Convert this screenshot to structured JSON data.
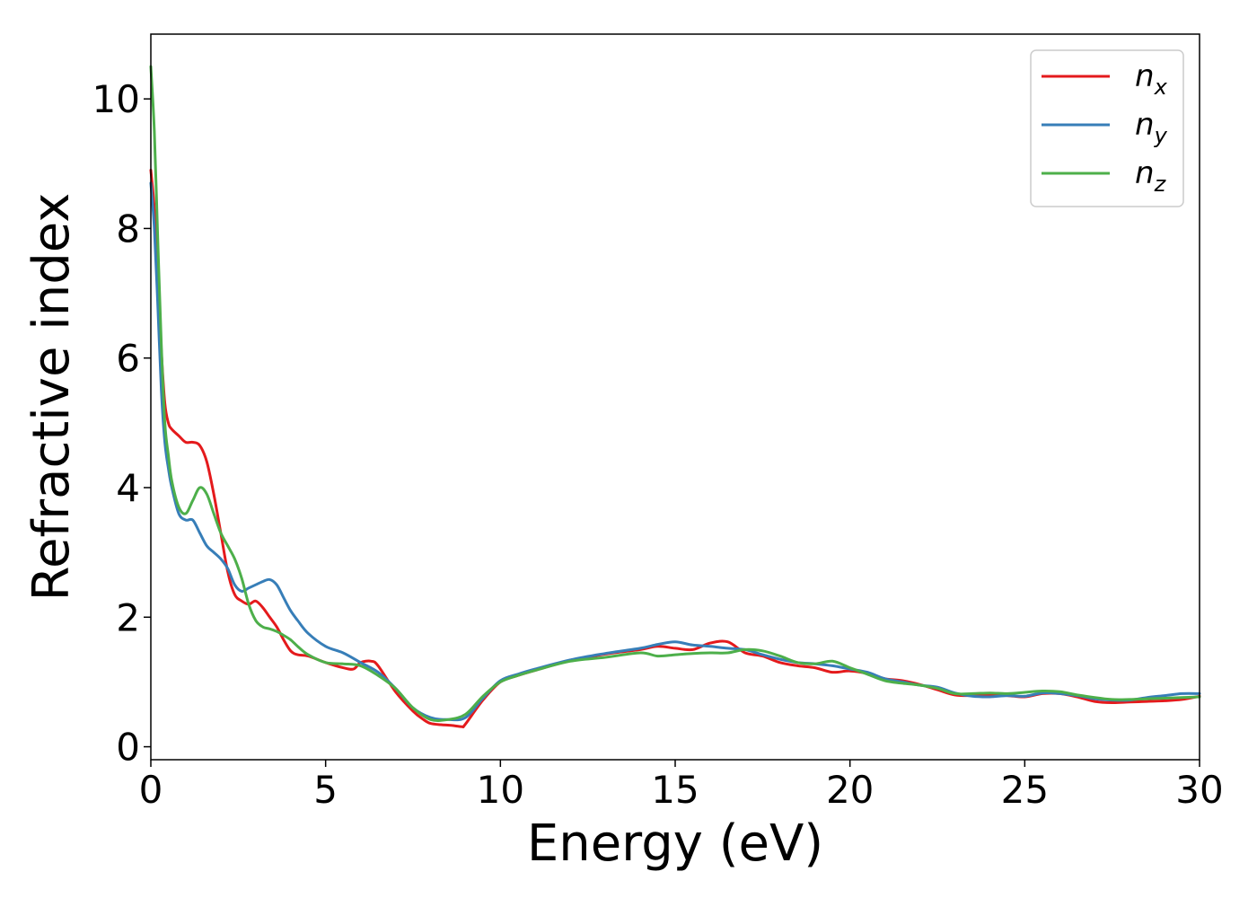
{
  "chart_data": {
    "type": "line",
    "xlabel": "Energy (eV)",
    "ylabel": "Refractive index",
    "xlim": [
      0,
      30
    ],
    "ylim": [
      -0.2,
      11.0
    ],
    "xticks": [
      0,
      5,
      10,
      15,
      20,
      25,
      30
    ],
    "yticks": [
      0,
      2,
      4,
      6,
      8,
      10
    ],
    "grid": false,
    "legend_position": "top-right",
    "series": [
      {
        "name": "n",
        "subscript": "x",
        "color": "#e41a1c",
        "x": [
          0,
          0.1,
          0.2,
          0.3,
          0.4,
          0.5,
          0.6,
          0.8,
          1.0,
          1.2,
          1.4,
          1.6,
          1.8,
          2.0,
          2.2,
          2.4,
          2.6,
          2.8,
          3.0,
          3.2,
          3.4,
          3.6,
          3.8,
          4.0,
          4.2,
          4.5,
          5.0,
          5.5,
          5.8,
          6.0,
          6.3,
          6.5,
          7.0,
          7.5,
          7.8,
          8.0,
          8.3,
          8.6,
          8.9,
          9.0,
          9.5,
          10.0,
          10.5,
          11.0,
          12.0,
          13.0,
          14.0,
          14.5,
          15.0,
          15.5,
          16.0,
          16.5,
          17.0,
          17.5,
          18.0,
          18.5,
          19.0,
          19.5,
          20.0,
          20.5,
          21.0,
          21.5,
          22.0,
          22.5,
          23.0,
          23.5,
          24.0,
          24.5,
          25.0,
          25.5,
          26.0,
          26.5,
          27.0,
          27.5,
          28.0,
          28.5,
          29.0,
          29.5,
          30.0
        ],
        "y": [
          8.9,
          8.3,
          7.2,
          6.1,
          5.3,
          5.0,
          4.9,
          4.8,
          4.7,
          4.7,
          4.65,
          4.4,
          3.9,
          3.3,
          2.7,
          2.35,
          2.25,
          2.2,
          2.25,
          2.15,
          2.0,
          1.85,
          1.65,
          1.48,
          1.42,
          1.4,
          1.3,
          1.22,
          1.2,
          1.3,
          1.32,
          1.25,
          0.85,
          0.55,
          0.42,
          0.36,
          0.34,
          0.33,
          0.31,
          0.35,
          0.72,
          1.0,
          1.1,
          1.18,
          1.33,
          1.43,
          1.5,
          1.55,
          1.52,
          1.5,
          1.6,
          1.62,
          1.45,
          1.4,
          1.3,
          1.25,
          1.22,
          1.15,
          1.17,
          1.13,
          1.05,
          1.02,
          0.96,
          0.88,
          0.8,
          0.79,
          0.8,
          0.79,
          0.77,
          0.82,
          0.82,
          0.77,
          0.7,
          0.68,
          0.69,
          0.7,
          0.71,
          0.73,
          0.78
        ]
      },
      {
        "name": "n",
        "subscript": "y",
        "color": "#377eb8",
        "x": [
          0,
          0.1,
          0.2,
          0.3,
          0.4,
          0.5,
          0.6,
          0.8,
          1.0,
          1.2,
          1.4,
          1.6,
          1.8,
          2.0,
          2.2,
          2.4,
          2.6,
          2.8,
          3.0,
          3.2,
          3.4,
          3.6,
          3.8,
          4.0,
          4.2,
          4.5,
          5.0,
          5.5,
          6.0,
          6.5,
          7.0,
          7.5,
          8.0,
          8.5,
          9.0,
          9.5,
          10.0,
          10.5,
          11.0,
          12.0,
          13.0,
          14.0,
          14.5,
          15.0,
          15.5,
          16.0,
          16.5,
          17.0,
          17.5,
          18.0,
          18.5,
          19.0,
          19.5,
          20.0,
          20.5,
          21.0,
          21.5,
          22.0,
          22.5,
          23.0,
          23.5,
          24.0,
          24.5,
          25.0,
          25.5,
          26.0,
          26.5,
          27.0,
          27.5,
          28.0,
          28.5,
          29.0,
          29.5,
          30.0
        ],
        "y": [
          8.7,
          8.0,
          6.8,
          5.5,
          4.7,
          4.3,
          4.0,
          3.6,
          3.5,
          3.5,
          3.3,
          3.1,
          3.0,
          2.9,
          2.75,
          2.5,
          2.4,
          2.45,
          2.5,
          2.55,
          2.58,
          2.5,
          2.3,
          2.1,
          1.95,
          1.75,
          1.55,
          1.45,
          1.3,
          1.15,
          0.9,
          0.6,
          0.45,
          0.42,
          0.45,
          0.75,
          1.02,
          1.12,
          1.2,
          1.34,
          1.44,
          1.52,
          1.58,
          1.62,
          1.57,
          1.55,
          1.52,
          1.5,
          1.42,
          1.35,
          1.3,
          1.28,
          1.25,
          1.2,
          1.15,
          1.05,
          1.0,
          0.95,
          0.92,
          0.83,
          0.78,
          0.77,
          0.79,
          0.78,
          0.83,
          0.82,
          0.79,
          0.74,
          0.72,
          0.72,
          0.76,
          0.79,
          0.82,
          0.82
        ]
      },
      {
        "name": "n",
        "subscript": "z",
        "color": "#4daf4a",
        "x": [
          0,
          0.1,
          0.2,
          0.3,
          0.4,
          0.5,
          0.6,
          0.8,
          1.0,
          1.2,
          1.4,
          1.6,
          1.8,
          2.0,
          2.2,
          2.4,
          2.6,
          2.8,
          3.0,
          3.2,
          3.4,
          3.6,
          3.8,
          4.0,
          4.2,
          4.5,
          5.0,
          5.5,
          6.0,
          6.5,
          7.0,
          7.5,
          8.0,
          8.5,
          9.0,
          9.5,
          10.0,
          10.5,
          11.0,
          12.0,
          13.0,
          14.0,
          14.5,
          15.0,
          15.5,
          16.0,
          16.5,
          17.0,
          17.5,
          18.0,
          18.5,
          19.0,
          19.5,
          20.0,
          20.5,
          21.0,
          21.5,
          22.0,
          22.5,
          23.0,
          23.5,
          24.0,
          24.5,
          25.0,
          25.5,
          26.0,
          26.5,
          27.0,
          27.5,
          28.0,
          28.5,
          29.0,
          29.5,
          30.0
        ],
        "y": [
          10.5,
          9.5,
          7.8,
          6.2,
          5.0,
          4.5,
          4.1,
          3.7,
          3.6,
          3.8,
          4.0,
          3.9,
          3.6,
          3.3,
          3.1,
          2.9,
          2.6,
          2.2,
          1.95,
          1.85,
          1.82,
          1.78,
          1.72,
          1.65,
          1.55,
          1.42,
          1.3,
          1.28,
          1.25,
          1.1,
          0.9,
          0.6,
          0.42,
          0.42,
          0.5,
          0.78,
          1.0,
          1.1,
          1.18,
          1.32,
          1.38,
          1.45,
          1.4,
          1.42,
          1.44,
          1.45,
          1.45,
          1.5,
          1.48,
          1.4,
          1.3,
          1.28,
          1.32,
          1.22,
          1.12,
          1.02,
          0.98,
          0.95,
          0.9,
          0.82,
          0.82,
          0.83,
          0.82,
          0.84,
          0.86,
          0.85,
          0.8,
          0.76,
          0.73,
          0.73,
          0.74,
          0.75,
          0.76,
          0.77
        ]
      }
    ]
  }
}
